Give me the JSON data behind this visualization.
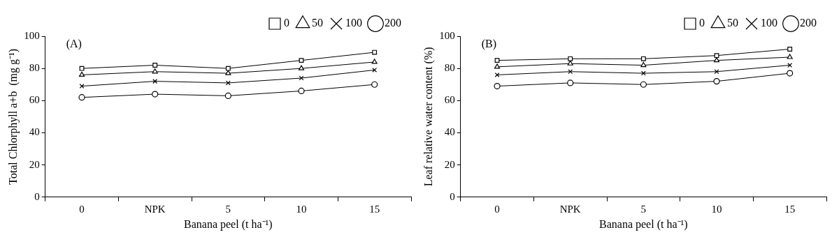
{
  "chart_data": [
    {
      "type": "line",
      "annotations": [
        "(A)"
      ],
      "xlabel": "Banana peel (t ha⁻¹)",
      "ylabel": "Total Chlorphyll a+b  (mg g⁻¹)",
      "categories": [
        "0",
        "NPK",
        "5",
        "10",
        "15"
      ],
      "ylim": [
        0,
        100
      ],
      "yticks": [
        0,
        20,
        40,
        60,
        80,
        100
      ],
      "grid": false,
      "legend": "top right",
      "line_style": "solid",
      "series": [
        {
          "name": "0",
          "color": "#000000",
          "marker": "square",
          "values": [
            80,
            82,
            80,
            85,
            90
          ]
        },
        {
          "name": "50",
          "color": "#000000",
          "marker": "triangle",
          "values": [
            76,
            78,
            77,
            80,
            84
          ]
        },
        {
          "name": "100",
          "color": "#000000",
          "marker": "cross",
          "values": [
            69,
            72,
            71,
            74,
            79
          ]
        },
        {
          "name": "200",
          "color": "#000000",
          "marker": "circle",
          "values": [
            62,
            64,
            63,
            66,
            70
          ]
        }
      ]
    },
    {
      "type": "line",
      "annotations": [
        "(B)"
      ],
      "xlabel": "Banana peel (t ha⁻¹)",
      "ylabel": "Leaf relative water content (%)",
      "categories": [
        "0",
        "NPK",
        "5",
        "10",
        "15"
      ],
      "ylim": [
        0,
        100
      ],
      "yticks": [
        0,
        20,
        40,
        60,
        80,
        100
      ],
      "grid": false,
      "legend": "top right",
      "line_style": "solid",
      "series": [
        {
          "name": "0",
          "color": "#000000",
          "marker": "square",
          "values": [
            85,
            86,
            86,
            88,
            92
          ]
        },
        {
          "name": "50",
          "color": "#000000",
          "marker": "triangle",
          "values": [
            81,
            83,
            82,
            85,
            87
          ]
        },
        {
          "name": "100",
          "color": "#000000",
          "marker": "cross",
          "values": [
            76,
            78,
            77,
            78,
            82
          ]
        },
        {
          "name": "200",
          "color": "#000000",
          "marker": "circle",
          "values": [
            69,
            71,
            70,
            72,
            77
          ]
        }
      ]
    }
  ]
}
